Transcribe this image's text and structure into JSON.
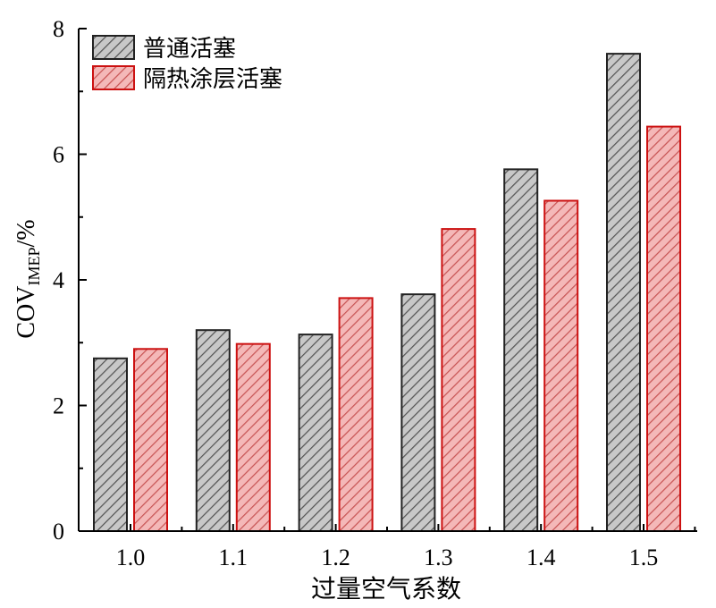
{
  "chart_data": {
    "type": "bar",
    "categories": [
      "1.0",
      "1.1",
      "1.2",
      "1.3",
      "1.4",
      "1.5"
    ],
    "series": [
      {
        "name": "普通活塞",
        "values": [
          2.75,
          3.2,
          3.13,
          3.77,
          5.76,
          7.6
        ],
        "fill": "#c8c8c8",
        "stroke": "#222222",
        "hatch": "#555555"
      },
      {
        "name": "隔热涂层活塞",
        "values": [
          2.9,
          2.98,
          3.71,
          4.81,
          5.26,
          6.44
        ],
        "fill": "#f4b8b8",
        "stroke": "#cc1111",
        "hatch": "#c85555"
      }
    ],
    "xlabel": "过量空气系数",
    "ylabel": {
      "main": "COV",
      "sub": "IMEP",
      "suffix": "/%"
    },
    "ylim": [
      0,
      8
    ],
    "yticks": [
      "0",
      "2",
      "4",
      "6",
      "8"
    ],
    "legend_position": "top-left",
    "grid": false
  }
}
